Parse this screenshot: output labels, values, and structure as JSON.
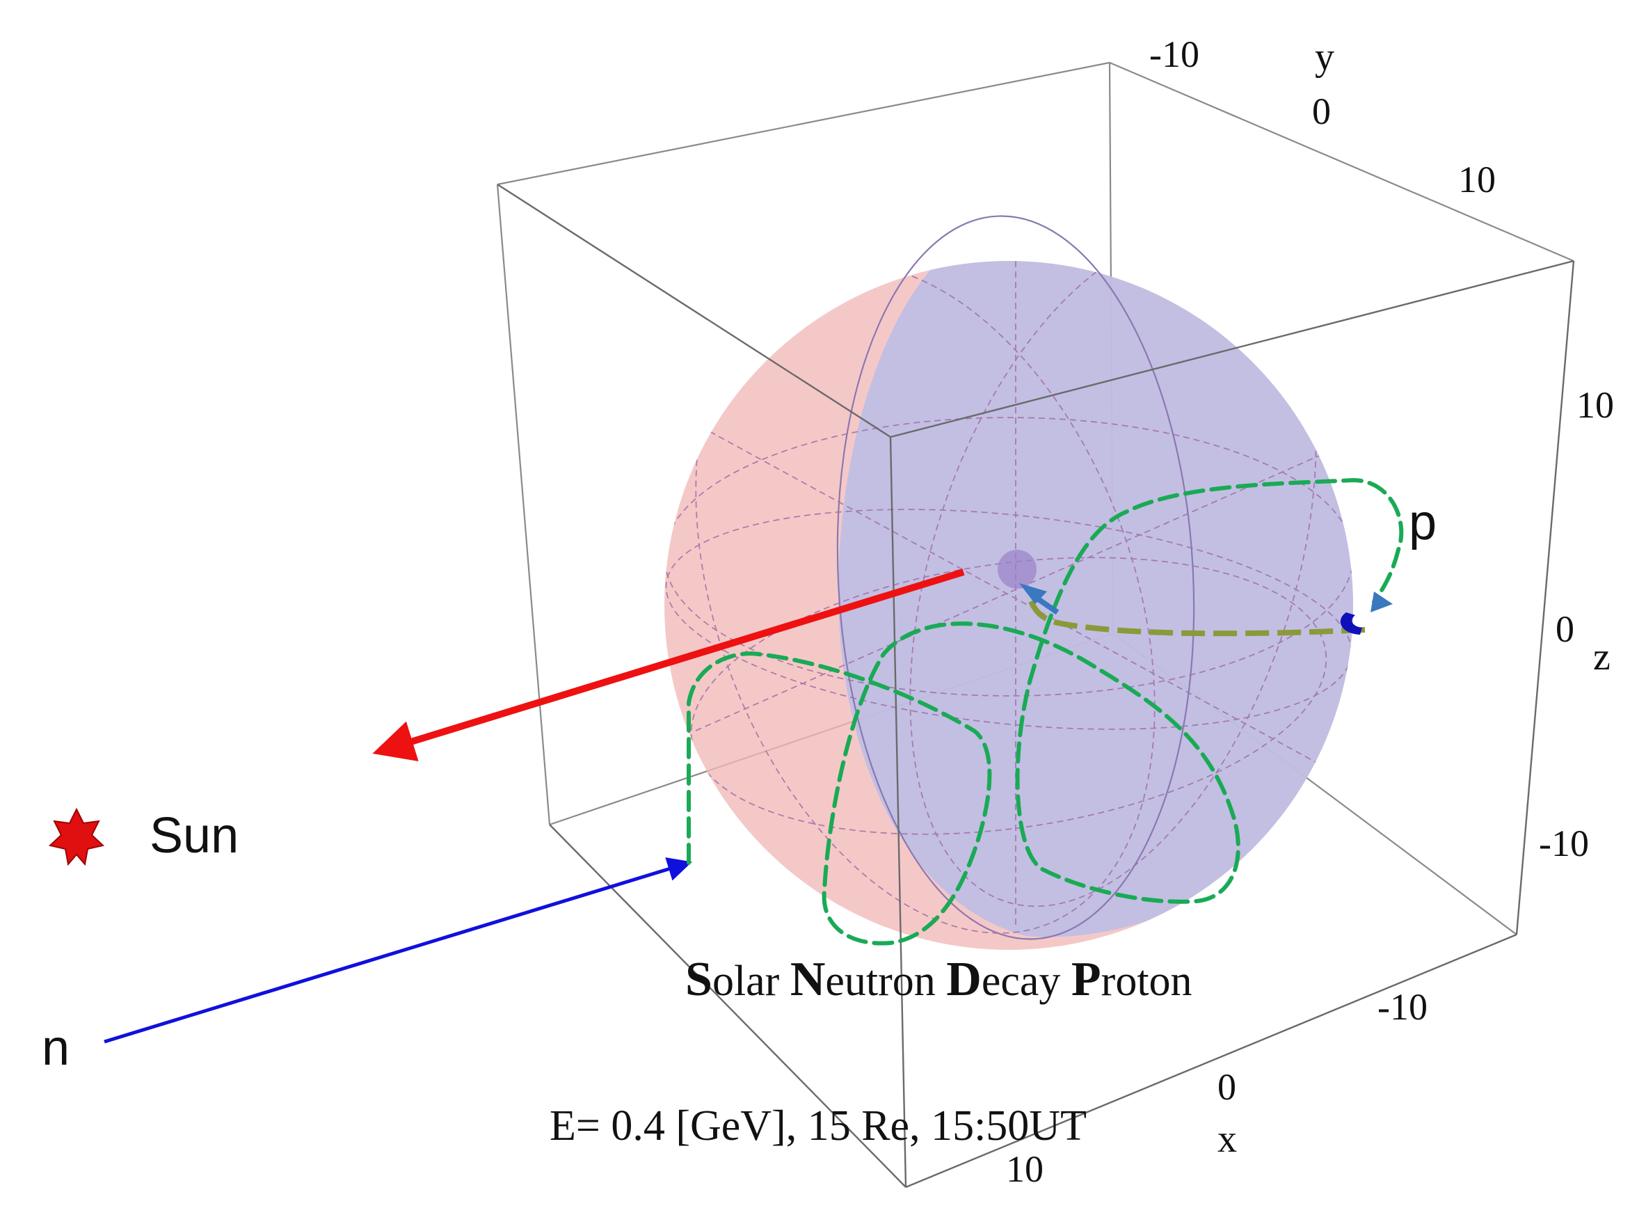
{
  "labels": {
    "sun": "Sun",
    "neutron": "n",
    "proton": "p"
  },
  "axes": {
    "x": {
      "label": "x",
      "ticks": [
        "-10",
        "0",
        "10"
      ]
    },
    "y": {
      "label": "y",
      "ticks": [
        "-10",
        "0",
        "10"
      ]
    },
    "z": {
      "label": "z",
      "ticks": [
        "10",
        "0",
        "-10"
      ]
    }
  },
  "caption": {
    "title_parts": [
      {
        "initial": "S",
        "rest": "olar "
      },
      {
        "initial": "N",
        "rest": "eutron "
      },
      {
        "initial": "D",
        "rest": "ecay "
      },
      {
        "initial": "P",
        "rest": "roton"
      }
    ],
    "subtitle": "E= 0.4 [GeV], 15 Re, 15:50UT"
  },
  "colors": {
    "sun_arrow": "#ee1111",
    "neutron_arrow": "#1010dd",
    "proton_track": "#1aaa55",
    "decay_track": "#8a9a3a",
    "sphere_day": "#f2b8b8",
    "sphere_night": "#b8bde8",
    "small_arrow": "#3a78c0",
    "sun_icon": "#e01010"
  }
}
